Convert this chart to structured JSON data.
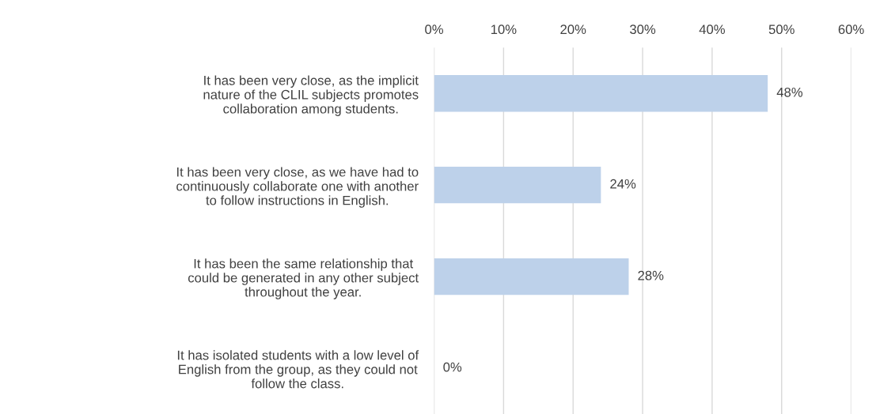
{
  "chart_data": {
    "type": "bar",
    "orientation": "horizontal",
    "categories": [
      "It has been very close, as the implicit\nnature of the CLIL subjects promotes\ncollaboration among students.",
      "It has been very close, as we have had to\ncontinuously collaborate one with another\nto follow instructions in English.",
      "It has been the same relationship that\ncould be generated in any other subject\nthroughout the year.",
      "It has isolated students with a low level of\nEnglish from the group, as they could not\nfollow the class."
    ],
    "values": [
      48,
      24,
      28,
      0
    ],
    "value_labels": [
      "48%",
      "24%",
      "28%",
      "0%"
    ],
    "color": "#bdd1ea",
    "xlim": [
      0,
      60
    ],
    "xticks": [
      {
        "value": 0,
        "label": "0%"
      },
      {
        "value": 10,
        "label": "10%"
      },
      {
        "value": 20,
        "label": "20%"
      },
      {
        "value": 30,
        "label": "30%"
      },
      {
        "value": 40,
        "label": "40%"
      },
      {
        "value": 50,
        "label": "50%"
      },
      {
        "value": 60,
        "label": "60%"
      }
    ],
    "grid": "x"
  }
}
